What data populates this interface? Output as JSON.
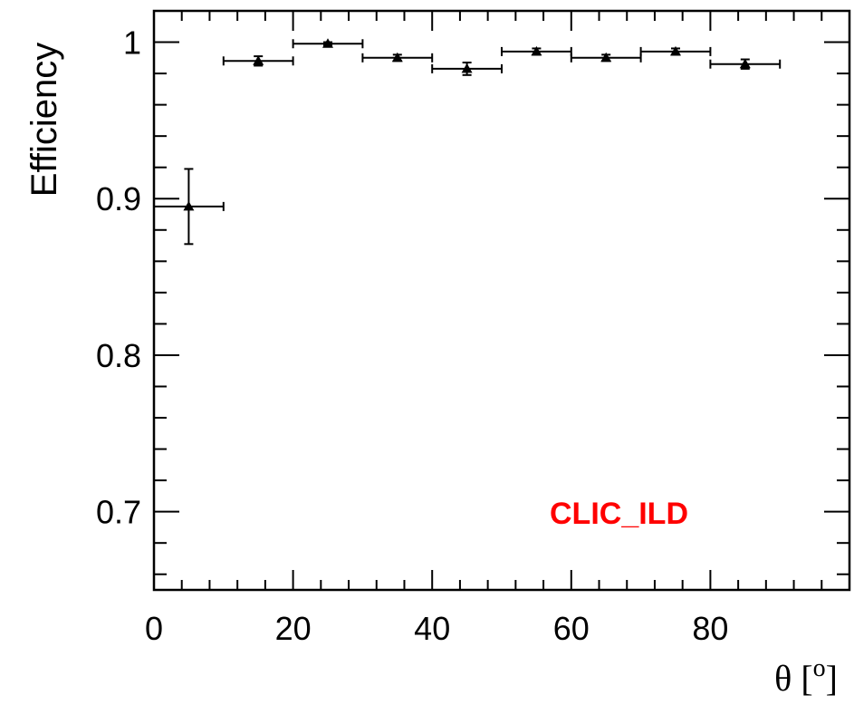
{
  "chart_data": {
    "type": "scatter",
    "xlabel": "θ [o]",
    "ylabel": "Efficiency",
    "xlim": [
      0,
      100
    ],
    "ylim": [
      0.65,
      1.02
    ],
    "x_ticks": [
      "0",
      "20",
      "40",
      "60",
      "80"
    ],
    "y_ticks": [
      "0.7",
      "0.8",
      "0.9",
      "1"
    ],
    "grid": false,
    "annotation": {
      "text": "CLIC_ILD",
      "color": "#ff0000"
    },
    "series": [
      {
        "marker": "triangle-up",
        "color": "#000000",
        "points": [
          {
            "x": 5,
            "x_err": 5,
            "y": 0.895,
            "y_err": 0.024
          },
          {
            "x": 15,
            "x_err": 5,
            "y": 0.988,
            "y_err": 0.003
          },
          {
            "x": 25,
            "x_err": 5,
            "y": 0.999,
            "y_err": 0.001
          },
          {
            "x": 35,
            "x_err": 5,
            "y": 0.99,
            "y_err": 0.002
          },
          {
            "x": 45,
            "x_err": 5,
            "y": 0.983,
            "y_err": 0.004
          },
          {
            "x": 55,
            "x_err": 5,
            "y": 0.994,
            "y_err": 0.002
          },
          {
            "x": 65,
            "x_err": 5,
            "y": 0.99,
            "y_err": 0.002
          },
          {
            "x": 75,
            "x_err": 5,
            "y": 0.994,
            "y_err": 0.002
          },
          {
            "x": 85,
            "x_err": 5,
            "y": 0.986,
            "y_err": 0.003
          }
        ]
      }
    ]
  }
}
